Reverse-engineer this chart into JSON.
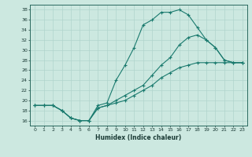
{
  "xlabel": "Humidex (Indice chaleur)",
  "background_color": "#cce8e0",
  "line_color": "#1a7a6e",
  "grid_color": "#b0d4cc",
  "xlim": [
    -0.5,
    23.5
  ],
  "ylim": [
    15.0,
    39.0
  ],
  "yticks": [
    16,
    18,
    20,
    22,
    24,
    26,
    28,
    30,
    32,
    34,
    36,
    38
  ],
  "xticks": [
    0,
    1,
    2,
    3,
    4,
    5,
    6,
    7,
    8,
    9,
    10,
    11,
    12,
    13,
    14,
    15,
    16,
    17,
    18,
    19,
    20,
    21,
    22,
    23
  ],
  "line1_x": [
    0,
    1,
    2,
    3,
    4,
    5,
    6,
    7,
    8,
    9,
    10,
    11,
    12,
    13,
    14,
    15,
    16,
    17,
    18,
    19,
    20,
    21,
    22,
    23
  ],
  "line1_y": [
    19,
    19,
    19,
    18,
    16.5,
    16,
    16,
    19,
    19.5,
    24,
    27,
    30.5,
    35,
    36,
    37.5,
    37.5,
    38,
    37,
    34.5,
    32,
    30.5,
    28,
    27.5,
    27.5
  ],
  "line2_x": [
    0,
    1,
    2,
    3,
    4,
    5,
    6,
    7,
    8,
    9,
    10,
    11,
    12,
    13,
    14,
    15,
    16,
    17,
    18,
    19,
    20,
    21,
    22,
    23
  ],
  "line2_y": [
    19,
    19,
    19,
    18,
    16.5,
    16,
    16,
    18.5,
    19,
    20,
    21,
    22,
    23,
    25,
    27,
    28.5,
    31,
    32.5,
    33,
    32,
    30.5,
    28,
    27.5,
    27.5
  ],
  "line3_x": [
    0,
    1,
    2,
    3,
    4,
    5,
    6,
    7,
    8,
    9,
    10,
    11,
    12,
    13,
    14,
    15,
    16,
    17,
    18,
    19,
    20,
    21,
    22,
    23
  ],
  "line3_y": [
    19,
    19,
    19,
    18,
    16.5,
    16,
    16,
    18.5,
    19,
    19.5,
    20,
    21,
    22,
    23,
    24.5,
    25.5,
    26.5,
    27,
    27.5,
    27.5,
    27.5,
    27.5,
    27.5,
    27.5
  ]
}
